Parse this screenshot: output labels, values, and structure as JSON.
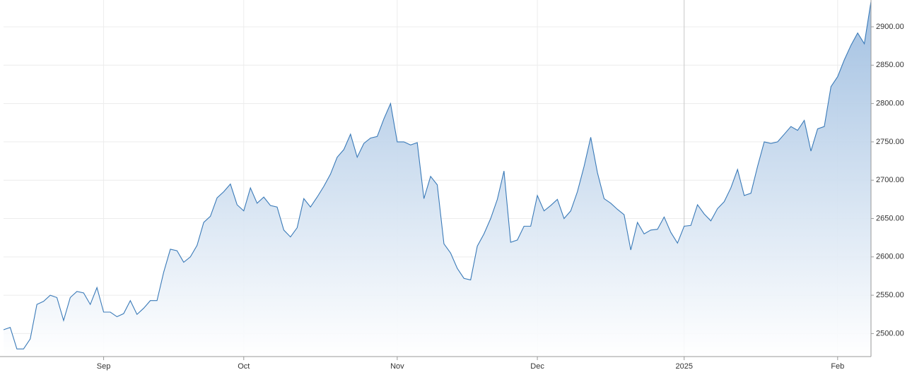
{
  "chart_data": {
    "type": "area",
    "categories": [
      null,
      null,
      null,
      null,
      null,
      null,
      null,
      null,
      null,
      null,
      null,
      null,
      null,
      null,
      null,
      "Sep",
      null,
      null,
      null,
      null,
      null,
      null,
      null,
      null,
      null,
      null,
      null,
      null,
      null,
      null,
      null,
      null,
      null,
      null,
      null,
      null,
      "Oct",
      null,
      null,
      null,
      null,
      null,
      null,
      null,
      null,
      null,
      null,
      null,
      null,
      null,
      null,
      null,
      null,
      null,
      null,
      null,
      null,
      null,
      null,
      "Nov",
      null,
      null,
      null,
      null,
      null,
      null,
      null,
      null,
      null,
      null,
      null,
      null,
      null,
      null,
      null,
      null,
      null,
      null,
      null,
      null,
      "Dec",
      null,
      null,
      null,
      null,
      null,
      null,
      null,
      null,
      null,
      null,
      null,
      null,
      null,
      null,
      null,
      null,
      null,
      null,
      null,
      null,
      null,
      "2025",
      null,
      null,
      null,
      null,
      null,
      null,
      null,
      null,
      null,
      null,
      null,
      null,
      null,
      null,
      null,
      null,
      null,
      null,
      null,
      null,
      null,
      null,
      "Feb",
      null,
      null,
      null,
      null,
      null
    ],
    "values": [
      2505,
      2508,
      2480,
      2480,
      2493,
      2538,
      2542,
      2550,
      2547,
      2517,
      2547,
      2555,
      2553,
      2538,
      2560,
      2528,
      2528,
      2522,
      2526,
      2543,
      2525,
      2533,
      2543,
      2543,
      2580,
      2610,
      2608,
      2593,
      2600,
      2615,
      2645,
      2653,
      2677,
      2685,
      2695,
      2668,
      2660,
      2690,
      2670,
      2678,
      2667,
      2665,
      2635,
      2626,
      2638,
      2676,
      2665,
      2678,
      2692,
      2708,
      2730,
      2740,
      2760,
      2730,
      2748,
      2755,
      2757,
      2780,
      2800,
      2750,
      2750,
      2746,
      2749,
      2676,
      2705,
      2694,
      2617,
      2605,
      2585,
      2572,
      2570,
      2614,
      2630,
      2650,
      2675,
      2712,
      2619,
      2622,
      2640,
      2640,
      2680,
      2660,
      2667,
      2675,
      2650,
      2660,
      2685,
      2718,
      2756,
      2710,
      2676,
      2670,
      2662,
      2655,
      2609,
      2645,
      2630,
      2635,
      2636,
      2652,
      2632,
      2618,
      2640,
      2641,
      2668,
      2656,
      2647,
      2663,
      2672,
      2690,
      2714,
      2680,
      2683,
      2718,
      2750,
      2748,
      2750,
      2760,
      2770,
      2765,
      2778,
      2738,
      2767,
      2770,
      2822,
      2835,
      2857,
      2876,
      2892,
      2878,
      2933
    ],
    "color": "#3a7ab8",
    "ylim": [
      2470,
      2935
    ],
    "yticks": [
      {
        "value": 2500,
        "label": "2500.00"
      },
      {
        "value": 2550,
        "label": "2550.00"
      },
      {
        "value": 2600,
        "label": "2600.00"
      },
      {
        "value": 2650,
        "label": "2650.00"
      },
      {
        "value": 2700,
        "label": "2700.00"
      },
      {
        "value": 2750,
        "label": "2750.00"
      },
      {
        "value": 2800,
        "label": "2800.00"
      },
      {
        "value": 2850,
        "label": "2850.00"
      },
      {
        "value": 2900,
        "label": "2900.00"
      }
    ],
    "grid": true
  }
}
